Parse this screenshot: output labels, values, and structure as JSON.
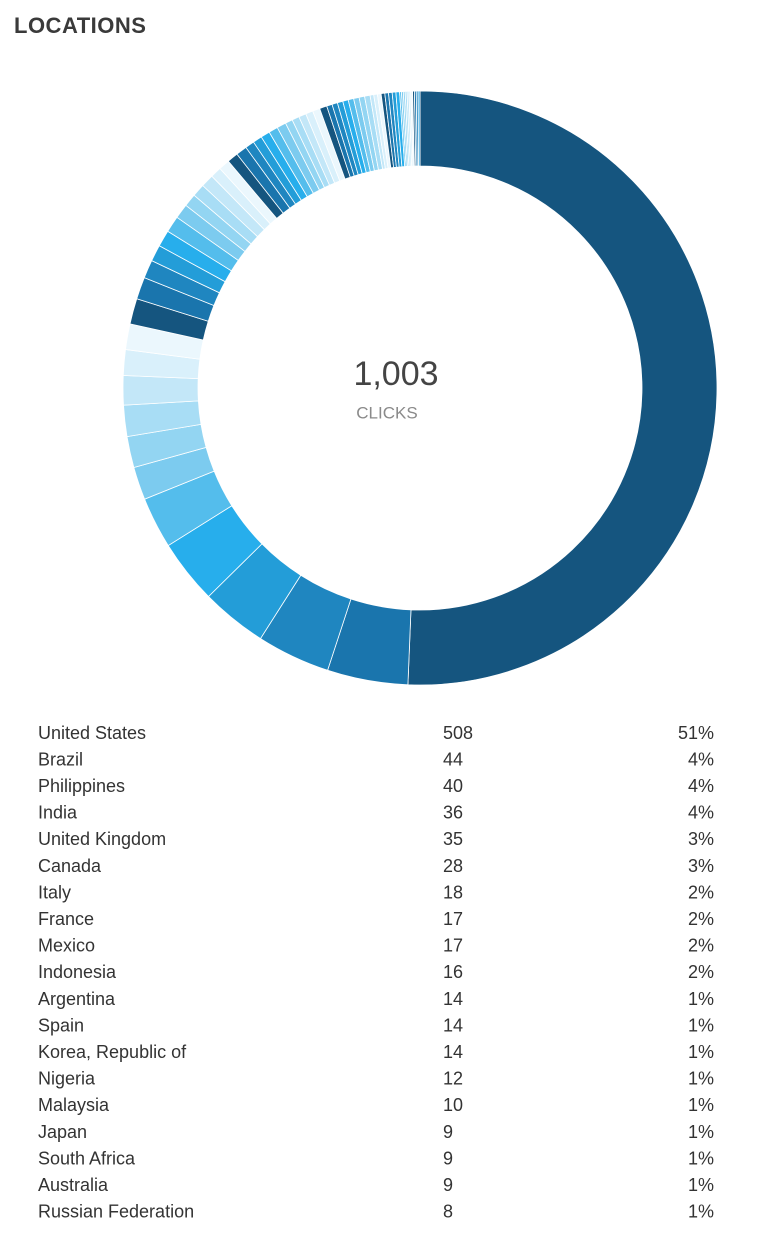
{
  "chart_data": {
    "type": "donut",
    "title": "LOCATIONS",
    "center_value": {
      "value": 1003,
      "label": "1,003"
    },
    "center_label": "CLICKS",
    "categories": [
      "United States",
      "Brazil",
      "Philippines",
      "India",
      "United Kingdom",
      "Canada",
      "Italy",
      "France",
      "Mexico",
      "Indonesia",
      "Argentina",
      "Spain",
      "Korea, Republic of",
      "Nigeria",
      "Malaysia",
      "Japan",
      "South Africa",
      "Australia",
      "Russian Federation"
    ],
    "values": [
      508,
      44,
      40,
      36,
      35,
      28,
      18,
      17,
      17,
      16,
      14,
      14,
      14,
      12,
      10,
      9,
      9,
      9,
      8
    ],
    "percents": [
      "51%",
      "4%",
      "4%",
      "4%",
      "3%",
      "3%",
      "2%",
      "2%",
      "2%",
      "2%",
      "1%",
      "1%",
      "1%",
      "1%",
      "1%",
      "1%",
      "1%",
      "1%",
      "1%"
    ],
    "other_values": [
      7,
      7,
      7,
      6,
      6,
      6,
      6,
      5,
      5,
      5,
      5,
      5,
      4,
      4,
      4,
      4,
      4,
      4,
      3,
      3,
      3,
      3,
      3,
      3,
      3,
      3,
      2,
      2,
      2,
      2,
      2,
      2,
      2,
      2,
      1,
      1,
      1,
      1,
      1,
      1,
      1,
      1,
      1,
      1,
      1
    ],
    "colors": [
      "#15557f",
      "#1a75ad",
      "#1f86c0",
      "#239dd8",
      "#27aeec",
      "#54bdec",
      "#7ccbef",
      "#93d5f2",
      "#a8ddf5",
      "#c3e7f8",
      "#d9f0fb",
      "#ebf7fd"
    ]
  }
}
